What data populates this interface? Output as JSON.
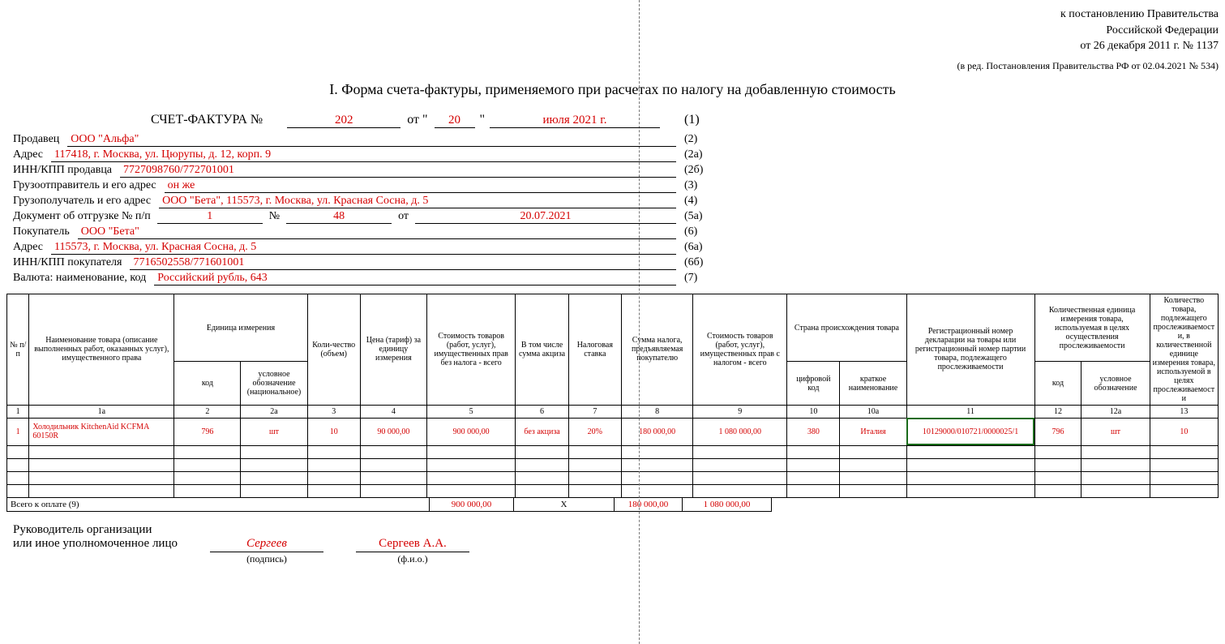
{
  "header": {
    "line1": "к постановлению Правительства",
    "line2": "Российской Федерации",
    "line3": "от 26 декабря 2011 г. № 1137",
    "sub": "(в ред. Постановления Правительства РФ от 02.04.2021 № 534)"
  },
  "title": "I. Форма счета-фактуры, применяемого при расчетах по налогу на добавленную стоимость",
  "invoice": {
    "label": "СЧЕТ-ФАКТУРА  №",
    "number": "202",
    "from": "от \"",
    "day": "20",
    "quote2": "\"",
    "monthyear": "июля 2021 г.",
    "ref": "(1)"
  },
  "fields": [
    {
      "label": "Продавец",
      "value": "ООО \"Альфа\"",
      "ref": "(2)"
    },
    {
      "label": "Адрес",
      "value": "117418, г. Москва, ул. Цюрупы, д. 12, корп. 9",
      "ref": "(2а)"
    },
    {
      "label": "ИНН/КПП продавца",
      "value": "7727098760/772701001",
      "ref": "(2б)"
    },
    {
      "label": "Грузоотправитель и его адрес",
      "value": "он же",
      "ref": "(3)"
    },
    {
      "label": "Грузополучатель и его адрес",
      "value": "ООО \"Бета\", 115573, г. Москва, ул. Красная Сосна, д. 5",
      "ref": "(4)"
    }
  ],
  "shipment": {
    "label": "Документ об отгрузке № п/п",
    "pp": "1",
    "nlabel": "№",
    "n": "48",
    "fromlabel": "от",
    "date": "20.07.2021",
    "ref": "(5а)"
  },
  "fields2": [
    {
      "label": "Покупатель",
      "value": "ООО \"Бета\"",
      "ref": "(6)"
    },
    {
      "label": "Адрес",
      "value": "115573, г. Москва, ул. Красная Сосна, д. 5",
      "ref": "(6а)"
    },
    {
      "label": "ИНН/КПП покупателя",
      "value": "7716502558/771601001",
      "ref": "(6б)"
    },
    {
      "label": "Валюта: наименование, код",
      "value": "Российский рубль, 643",
      "ref": "(7)"
    }
  ],
  "table": {
    "widths": [
      26,
      170,
      78,
      78,
      62,
      78,
      104,
      62,
      62,
      84,
      110,
      62,
      78,
      150,
      55,
      80,
      80
    ],
    "headers": {
      "c1": "№ п/п",
      "c1a": "Наименование товара (описание выполненных работ, оказанных услуг), имущественного права",
      "unit": "Единица измерения",
      "c2": "код",
      "c2a": "условное обозначение (национальное)",
      "c3": "Коли-чество (объем)",
      "c4": "Цена (тариф) за единицу измерения",
      "c5": "Стоимость товаров (работ, услуг), имущественных прав без налога - всего",
      "c6": "В том числе сумма акциза",
      "c7": "Налоговая ставка",
      "c8": "Сумма налога, предъявляемая покупателю",
      "c9": "Стоимость товаров (работ, услуг), имущественных прав с налогом - всего",
      "origin": "Страна происхождения товара",
      "c10": "цифровой код",
      "c10a": "краткое наименование",
      "c11": "Регистрационный номер декларации на товары или регистрационный номер партии товара, подлежащего прослеживаемости",
      "qunit": "Количественная единица измерения товара, используемая в целях осуществления прослеживаемости",
      "c12": "код",
      "c12a": "условное обозначение",
      "c13": "Количество товара, подлежащего прослеживаемости, в количественной единице измерения товара, используемой в целях прослеживаемости"
    },
    "colnums": [
      "1",
      "1а",
      "2",
      "2а",
      "3",
      "4",
      "5",
      "6",
      "7",
      "8",
      "9",
      "10",
      "10а",
      "11",
      "12",
      "12а",
      "13"
    ],
    "row": {
      "n": "1",
      "name": "Холодильник KitchenAid KCFMA 60150R",
      "code": "796",
      "unit": "шт",
      "qty": "10",
      "price": "90 000,00",
      "sum_no_tax": "900 000,00",
      "excise": "без акциза",
      "rate": "20%",
      "tax": "180 000,00",
      "sum_with_tax": "1 080 000,00",
      "country_code": "380",
      "country": "Италия",
      "decl": "10129000/010721/0000025/1",
      "qcode": "796",
      "qunit": "шт",
      "qqty": "10"
    }
  },
  "totals": {
    "label": "Всего к оплате (9)",
    "sum_no_tax": "900 000,00",
    "x": "Х",
    "tax": "180 000,00",
    "sum_with_tax": "1 080 000,00"
  },
  "sign": {
    "line1": "Руководитель организации",
    "line2": "или иное уполномоченное лицо",
    "signature": "Сергеев",
    "signature_cap": "(подпись)",
    "fio": "Сергеев А.А.",
    "fio_cap": "(ф.и.о.)"
  }
}
